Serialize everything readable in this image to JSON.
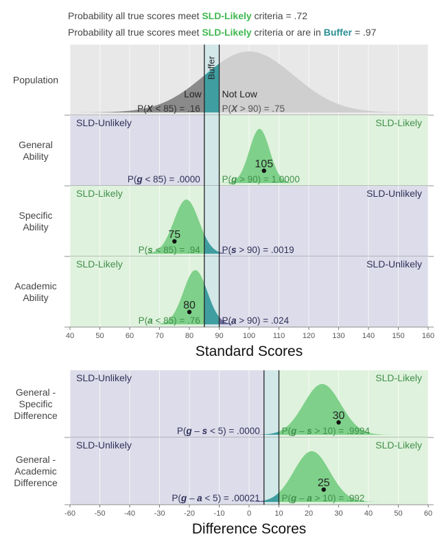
{
  "header": {
    "line1_prefix": "Probability all true scores meet ",
    "line1_highlight": "SLD-Likely",
    "line1_suffix": " criteria = .72",
    "line2_prefix": "Probability all true scores meet ",
    "line2_highlight": "SLD-Likely",
    "line2_mid": " criteria or are in ",
    "line2_buffer": "Buffer",
    "line2_suffix": " = .97"
  },
  "colors": {
    "likely_bg": "#dff2dd",
    "unlikely_bg": "#dcdcea",
    "buffer_bg": "#d2e7e8",
    "likely_fill": "#7fd08a",
    "unlikely_fill": "#6e6e9e",
    "buffer_fill": "#3f9ea0",
    "population_fill": "#cfcfcf",
    "population_low_fill": "#8a8a8a",
    "likely_text": "#3f8f4a",
    "unlikely_text": "#2f2f58",
    "buffer_text": "#2a8f94",
    "cutoff_line": "#222222"
  },
  "chart_data": [
    {
      "type": "area",
      "name": "standard-scores-panel",
      "xlabel": "Standard Scores",
      "xlim": [
        40,
        160
      ],
      "xticks": [
        40,
        50,
        60,
        70,
        80,
        90,
        100,
        110,
        120,
        130,
        140,
        150,
        160
      ],
      "cutoff": 85,
      "buffer": [
        85,
        90
      ],
      "buffer_label": "Buffer",
      "rows": [
        {
          "key": "population",
          "label": [
            "Population"
          ],
          "mean": 100,
          "sd": 15,
          "observed": null,
          "background": "neutral",
          "low_label": "Low",
          "high_label": "Not Low",
          "left_prob": {
            "pre": "P(",
            "var": "X",
            "post": " < 85) = .16"
          },
          "right_prob": {
            "pre": "P(",
            "var": "X",
            "post": " > 90) = .75"
          }
        },
        {
          "key": "general",
          "label": [
            "General",
            "Ability"
          ],
          "mean": 103.5,
          "sd": 3.4,
          "observed": 105,
          "observed_label": "105",
          "left_zone": "SLD-Unlikely",
          "right_zone": "SLD-Likely",
          "left_prob": {
            "pre": "P(",
            "var": "g",
            "post": " < 85) = .0000"
          },
          "right_prob": {
            "pre": "P(",
            "var": "g",
            "post": " > 90) = 1.0000"
          }
        },
        {
          "key": "specific",
          "label": [
            "Specific",
            "Ability"
          ],
          "mean": 79,
          "sd": 4.2,
          "observed": 75,
          "observed_label": "75",
          "left_zone": "SLD-Likely",
          "right_zone": "SLD-Unlikely",
          "left_prob": {
            "pre": "P(",
            "var": "s",
            "post": " < 85) = .94"
          },
          "right_prob": {
            "pre": "P(",
            "var": "s",
            "post": " > 90) = .0019"
          }
        },
        {
          "key": "academic",
          "label": [
            "Academic",
            "Ability"
          ],
          "mean": 82,
          "sd": 4.0,
          "observed": 80,
          "observed_label": "80",
          "left_zone": "SLD-Likely",
          "right_zone": "SLD-Unlikely",
          "left_prob": {
            "pre": "P(",
            "var": "a",
            "post": " < 85) = .76"
          },
          "right_prob": {
            "pre": "P(",
            "var": "a",
            "post": " > 90) = .024"
          }
        }
      ]
    },
    {
      "type": "area",
      "name": "difference-scores-panel",
      "xlabel": "Difference Scores",
      "xlim": [
        -60,
        60
      ],
      "xticks": [
        -60,
        -50,
        -40,
        -30,
        -20,
        -10,
        0,
        10,
        20,
        30,
        40,
        50,
        60
      ],
      "cutoff": 5,
      "buffer": [
        5,
        10
      ],
      "rows": [
        {
          "key": "gen-spec",
          "label": [
            "General -",
            "Specific",
            "Difference"
          ],
          "mean": 24.5,
          "sd": 6.2,
          "observed": 30,
          "observed_label": "30",
          "left_zone": "SLD-Unlikely",
          "right_zone": "SLD-Likely",
          "left_prob": {
            "pre": "P(",
            "var": "g",
            "mid": " – ",
            "var2": "s",
            "post": " < 5) = .0000"
          },
          "right_prob": {
            "pre": "P(",
            "var": "g",
            "mid": " – ",
            "var2": "s",
            "post": " > 10) = .9994"
          }
        },
        {
          "key": "gen-acad",
          "label": [
            "General -",
            "Academic",
            "Difference"
          ],
          "mean": 21,
          "sd": 6.0,
          "observed": 25,
          "observed_label": "25",
          "left_zone": "SLD-Unlikely",
          "right_zone": "SLD-Likely",
          "left_prob": {
            "pre": "P(",
            "var": "g",
            "mid": " – ",
            "var2": "a",
            "post": " < 5) = .00021"
          },
          "right_prob": {
            "pre": "P(",
            "var": "g",
            "mid": " – ",
            "var2": "a",
            "post": " > 10) = .992"
          }
        }
      ]
    }
  ]
}
